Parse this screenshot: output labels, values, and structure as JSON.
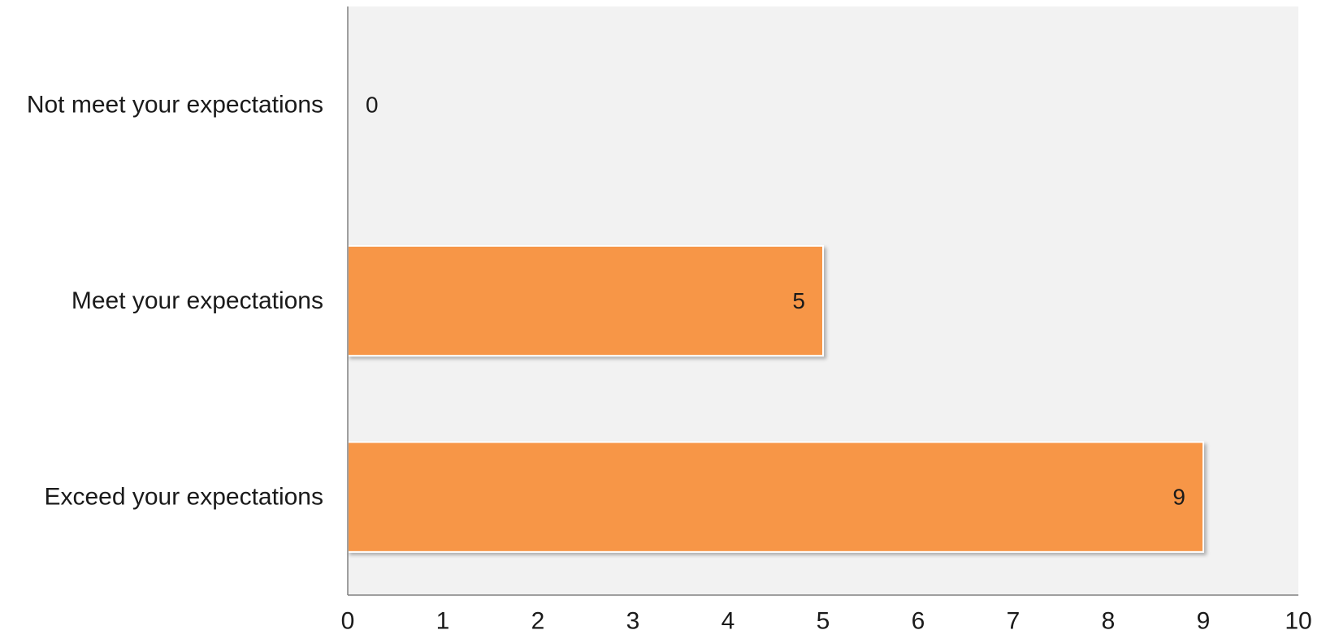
{
  "chart_data": {
    "type": "bar",
    "orientation": "horizontal",
    "categories": [
      "Not meet your expectations",
      "Meet your expectations",
      "Exceed your expectations"
    ],
    "values": [
      0,
      5,
      9
    ],
    "data_labels": [
      "0",
      "5",
      "9"
    ],
    "xlim": [
      0,
      10
    ],
    "x_ticks": [
      0,
      1,
      2,
      3,
      4,
      5,
      6,
      7,
      8,
      9,
      10
    ],
    "x_tick_labels": [
      "0",
      "1",
      "2",
      "3",
      "4",
      "5",
      "6",
      "7",
      "8",
      "9",
      "10"
    ],
    "title": "",
    "xlabel": "",
    "ylabel": "",
    "grid": false,
    "legend": "none",
    "colors": {
      "bar": "#f79646",
      "plot_background": "#f2f2f2",
      "axis": "#808080"
    }
  }
}
